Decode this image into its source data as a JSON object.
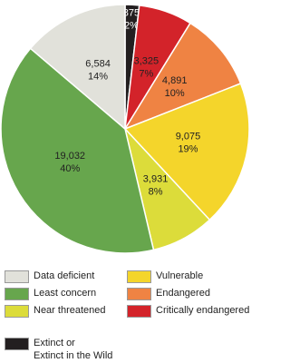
{
  "chart_data": {
    "type": "pie",
    "categories": [
      "Extinct or\nExtinct in the Wild",
      "Critically endangered",
      "Endangered",
      "Vulnerable",
      "Near threatened",
      "Least concern",
      "Data deficient"
    ],
    "values": [
      875,
      3325,
      4891,
      9075,
      3931,
      19032,
      6584
    ],
    "value_labels": [
      "875",
      "3,325",
      "4,891",
      "9,075",
      "3,931",
      "19,032",
      "6,584"
    ],
    "percent_labels": [
      "2%",
      "7%",
      "10%",
      "19%",
      "8%",
      "40%",
      "14%"
    ],
    "colors": [
      "#231f20",
      "#d3232a",
      "#ef8343",
      "#f4d52b",
      "#dcdc3a",
      "#67a64d",
      "#e1e1da"
    ]
  }
}
